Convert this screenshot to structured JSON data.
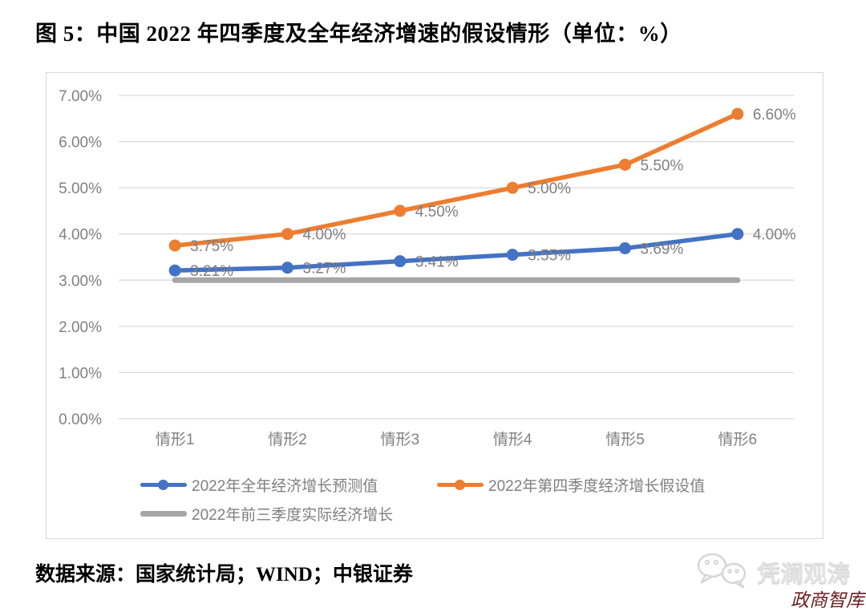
{
  "title": "图 5：中国 2022 年四季度及全年经济增速的假设情形（单位：%）",
  "source": "数据来源：国家统计局；WIND；中银证券",
  "watermark": {
    "brand": "凭澜观涛",
    "sub": "政商智库",
    "icon": "wechat-chat-bubbles-icon",
    "brand_color": "#E2E2E2",
    "sub_color": "#6B1D1D"
  },
  "chart_data": {
    "type": "line",
    "categories": [
      "情形1",
      "情形2",
      "情形3",
      "情形4",
      "情形5",
      "情形6"
    ],
    "series": [
      {
        "name": "2022年全年经济增长预测值",
        "color": "#4472C4",
        "marker": true,
        "width": 5.5,
        "values": [
          3.21,
          3.27,
          3.41,
          3.55,
          3.69,
          4.0
        ],
        "labels": [
          "3.21%",
          "3.27%",
          "3.41%",
          "3.55%",
          "3.69%",
          "4.00%"
        ]
      },
      {
        "name": "2022年第四季度经济增长假设值",
        "color": "#ED7D31",
        "marker": true,
        "width": 5.5,
        "values": [
          3.75,
          4.0,
          4.5,
          5.0,
          5.5,
          6.6
        ],
        "labels": [
          "3.75%",
          "4.00%",
          "4.50%",
          "5.00%",
          "5.50%",
          "6.60%"
        ]
      },
      {
        "name": "2022年前三季度实际经济增长",
        "color": "#A6A6A6",
        "marker": false,
        "width": 7,
        "values": [
          3.0,
          3.0,
          3.0,
          3.0,
          3.0,
          3.0
        ],
        "labels": []
      }
    ],
    "ylim": [
      0,
      7
    ],
    "yticks": [
      "0.00%",
      "1.00%",
      "2.00%",
      "3.00%",
      "4.00%",
      "5.00%",
      "6.00%",
      "7.00%"
    ],
    "grid": true,
    "grid_color": "#D9D9D9",
    "tick_color": "#808080",
    "data_label_color": "#7F7F7F",
    "legend_position": "bottom-left-inside"
  }
}
